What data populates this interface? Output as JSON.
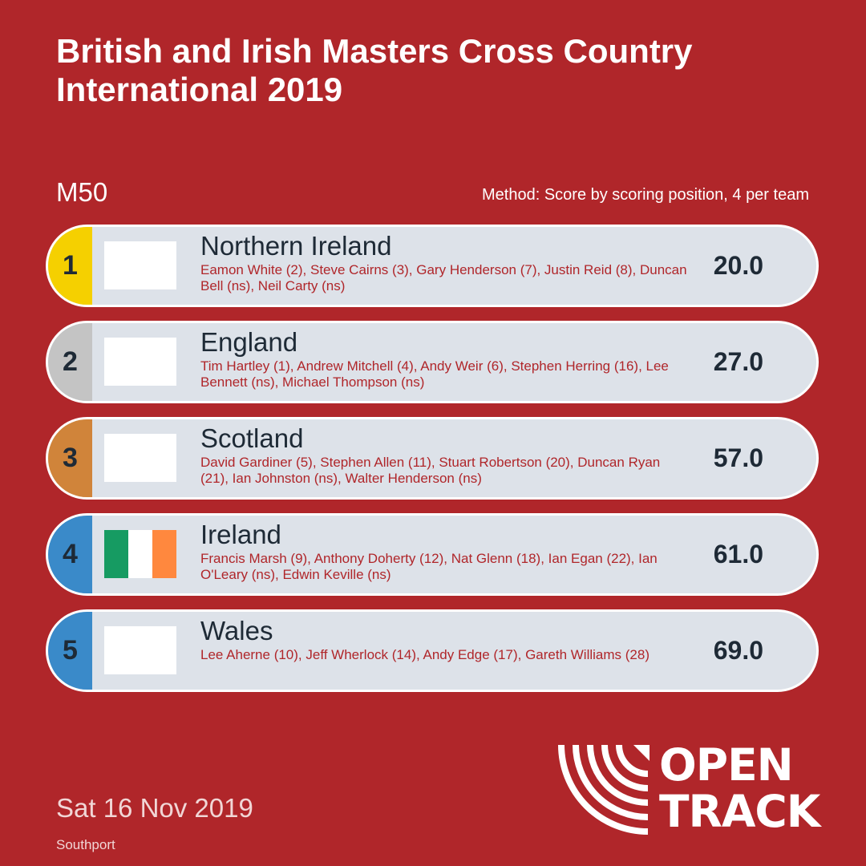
{
  "header": {
    "title": "British and Irish Masters Cross Country International 2019",
    "category": "M50",
    "method": "Method: Score by scoring position, 4 per team"
  },
  "teams": [
    {
      "rank": "1",
      "name": "Northern Ireland",
      "runners": "Eamon White (2), Steve Cairns (3), Gary Henderson (7), Justin Reid (8), Duncan Bell (ns), Neil Carty (ns)",
      "score": "20.0",
      "tab_color": "#f5d000"
    },
    {
      "rank": "2",
      "name": "England",
      "runners": "Tim Hartley (1), Andrew Mitchell (4), Andy Weir (6), Stephen Herring (16), Lee Bennett (ns), Michael Thompson (ns)",
      "score": "27.0",
      "tab_color": "#c4c4c4"
    },
    {
      "rank": "3",
      "name": "Scotland",
      "runners": "David Gardiner (5), Stephen Allen (11), Stuart Robertson (20), Duncan Ryan (21), Ian Johnston (ns), Walter Henderson (ns)",
      "score": "57.0",
      "tab_color": "#d0843a"
    },
    {
      "rank": "4",
      "name": "Ireland",
      "runners": "Francis Marsh (9), Anthony Doherty (12), Nat Glenn (18), Ian Egan (22), Ian O'Leary (ns), Edwin Keville (ns)",
      "score": "61.0",
      "tab_color": "#3a8ac9"
    },
    {
      "rank": "5",
      "name": "Wales",
      "runners": "Lee Aherne (10), Jeff Wherlock (14), Andy Edge (17), Gareth Williams (28)",
      "score": "69.0",
      "tab_color": "#3a8ac9"
    }
  ],
  "ireland_flag_colors": [
    "#169b62",
    "#ffffff",
    "#ff883e"
  ],
  "footer": {
    "date": "Sat 16 Nov 2019",
    "venue": "Southport",
    "logo_line1": "OPEN",
    "logo_line2": "TRACK"
  },
  "colors": {
    "background": "#b0262a",
    "row_background": "#dde2e9",
    "text_dark": "#1e2a36"
  }
}
